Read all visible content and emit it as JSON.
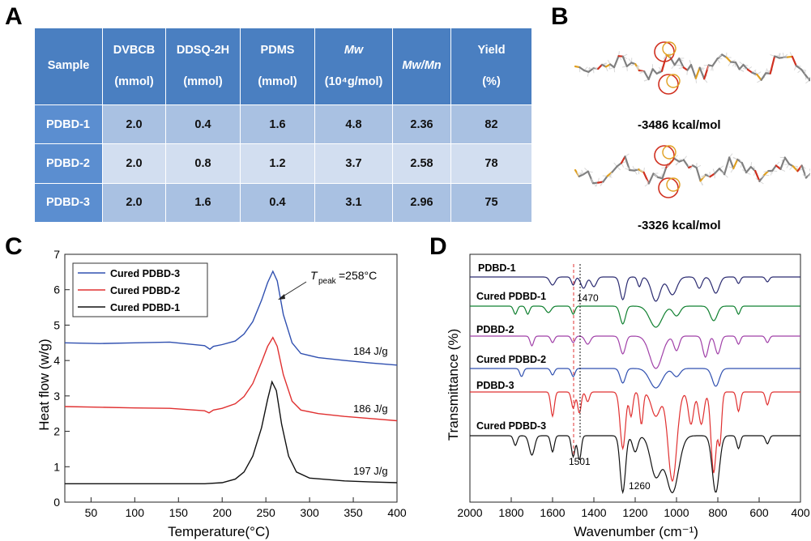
{
  "panels": {
    "a": "A",
    "b": "B",
    "c": "C",
    "d": "D"
  },
  "table": {
    "headers": [
      {
        "line1": "Sample",
        "line2": ""
      },
      {
        "line1": "DVBCB",
        "line2": "(mmol)"
      },
      {
        "line1": "DDSQ-2H",
        "line2": "(mmol)"
      },
      {
        "line1": "PDMS",
        "line2": "(mmol)"
      },
      {
        "line1": "Mw",
        "line2": "(10⁴g/mol)"
      },
      {
        "line1": "Mw/Mn",
        "line2": ""
      },
      {
        "line1": "Yield",
        "line2": "(%)"
      }
    ],
    "rows": [
      {
        "sample": "PDBD-1",
        "dvbcb": "2.0",
        "ddsq": "0.4",
        "pdms": "1.6",
        "mw": "4.8",
        "pdi": "2.36",
        "yield": "82"
      },
      {
        "sample": "PDBD-2",
        "dvbcb": "2.0",
        "ddsq": "0.8",
        "pdms": "1.2",
        "mw": "3.7",
        "pdi": "2.58",
        "yield": "78"
      },
      {
        "sample": "PDBD-3",
        "dvbcb": "2.0",
        "ddsq": "1.6",
        "pdms": "0.4",
        "mw": "3.1",
        "pdi": "2.96",
        "yield": "75"
      }
    ]
  },
  "molecules": {
    "energy_top": "-3486 kcal/mol",
    "energy_bottom": "-3326 kcal/mol",
    "colors": {
      "backbone": "#808080",
      "si": "#e0a020",
      "o": "#d03020",
      "h": "#d8d8d8"
    }
  },
  "chart_data": [
    {
      "type": "line",
      "xlabel": "Temperature(°C)",
      "ylabel": "Heat flow (w/g)",
      "xlim": [
        20,
        400
      ],
      "ylim": [
        0,
        7
      ],
      "xticks": [
        50,
        100,
        150,
        200,
        250,
        300,
        350,
        400
      ],
      "yticks": [
        0,
        1,
        2,
        3,
        4,
        5,
        6,
        7
      ],
      "legend_position": "top-left",
      "series": [
        {
          "name": "Cured PDBD-3",
          "color": "#3050b0",
          "points": [
            [
              20,
              4.5
            ],
            [
              60,
              4.48
            ],
            [
              100,
              4.5
            ],
            [
              140,
              4.52
            ],
            [
              180,
              4.42
            ],
            [
              186,
              4.32
            ],
            [
              190,
              4.4
            ],
            [
              200,
              4.45
            ],
            [
              215,
              4.55
            ],
            [
              225,
              4.75
            ],
            [
              235,
              5.1
            ],
            [
              245,
              5.7
            ],
            [
              252,
              6.2
            ],
            [
              258,
              6.52
            ],
            [
              263,
              6.25
            ],
            [
              270,
              5.3
            ],
            [
              280,
              4.5
            ],
            [
              290,
              4.2
            ],
            [
              310,
              4.08
            ],
            [
              340,
              4.0
            ],
            [
              370,
              3.93
            ],
            [
              400,
              3.87
            ]
          ]
        },
        {
          "name": "Cured PDBD-2",
          "color": "#e03030",
          "points": [
            [
              20,
              2.7
            ],
            [
              60,
              2.68
            ],
            [
              100,
              2.66
            ],
            [
              140,
              2.65
            ],
            [
              180,
              2.58
            ],
            [
              185,
              2.52
            ],
            [
              190,
              2.6
            ],
            [
              200,
              2.65
            ],
            [
              215,
              2.78
            ],
            [
              225,
              2.98
            ],
            [
              235,
              3.35
            ],
            [
              245,
              3.95
            ],
            [
              252,
              4.4
            ],
            [
              258,
              4.65
            ],
            [
              263,
              4.4
            ],
            [
              270,
              3.6
            ],
            [
              280,
              2.85
            ],
            [
              290,
              2.6
            ],
            [
              310,
              2.5
            ],
            [
              340,
              2.42
            ],
            [
              370,
              2.36
            ],
            [
              400,
              2.3
            ]
          ]
        },
        {
          "name": "Cured PDBD-1",
          "color": "#111111",
          "points": [
            [
              20,
              0.52
            ],
            [
              60,
              0.52
            ],
            [
              100,
              0.52
            ],
            [
              140,
              0.52
            ],
            [
              180,
              0.52
            ],
            [
              200,
              0.55
            ],
            [
              215,
              0.65
            ],
            [
              225,
              0.85
            ],
            [
              235,
              1.3
            ],
            [
              245,
              2.1
            ],
            [
              252,
              2.9
            ],
            [
              257,
              3.4
            ],
            [
              262,
              3.15
            ],
            [
              268,
              2.2
            ],
            [
              276,
              1.3
            ],
            [
              285,
              0.85
            ],
            [
              300,
              0.68
            ],
            [
              340,
              0.6
            ],
            [
              370,
              0.57
            ],
            [
              400,
              0.55
            ]
          ]
        }
      ],
      "annotations": {
        "peak_symbol": "T",
        "peak_sub": "peak",
        "peak_value": "=258°C",
        "enthalpy_3": "184 J/g",
        "enthalpy_2": "186 J/g",
        "enthalpy_1": "197 J/g"
      }
    },
    {
      "type": "line",
      "xlabel": "Wavenumber (cm⁻¹)",
      "ylabel": "Transmittance (%)",
      "xlim": [
        2000,
        400
      ],
      "xticks": [
        2000,
        1800,
        1600,
        1400,
        1200,
        1000,
        800,
        600,
        400
      ],
      "series": [
        {
          "name": "PDBD-1",
          "color": "#2a2a70",
          "offset": 0
        },
        {
          "name": "Cured PDBD-1",
          "color": "#108030",
          "offset": 1
        },
        {
          "name": "PDBD-2",
          "color": "#a040a8",
          "offset": 2
        },
        {
          "name": "Cured PDBD-2",
          "color": "#3050b0",
          "offset": 3
        },
        {
          "name": "PDBD-3",
          "color": "#e03030",
          "offset": 4
        },
        {
          "name": "Cured PDBD-3",
          "color": "#111111",
          "offset": 5
        }
      ],
      "annotations": {
        "line_1470": "1470",
        "line_1501": "1501",
        "peak_1260": "1260"
      },
      "reference_lines": [
        1501,
        1470
      ]
    }
  ]
}
